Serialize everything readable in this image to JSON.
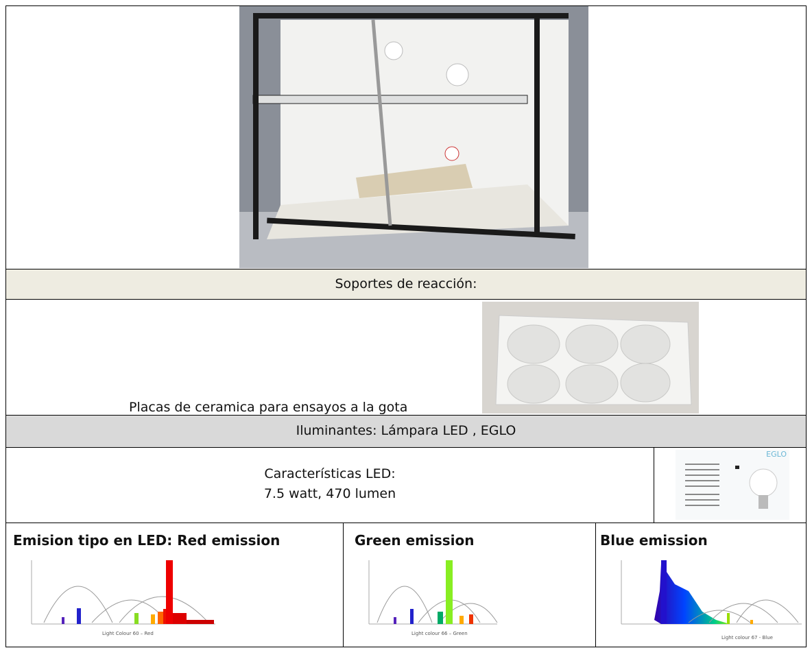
{
  "table": {
    "rows": [
      {
        "heading": "Soportes de reacción:"
      },
      {
        "text": "Placas de ceramica para ensayos a la gota"
      },
      {
        "heading": "Iluminantes: Lámpara LED , EGLO"
      },
      {
        "lines": [
          "Características LED:",
          "7.5 watt, 470 lumen"
        ],
        "brand": "EGLO"
      },
      {
        "cells": [
          {
            "title": "Emision tipo en LED: Red emission",
            "caption": "Light Colour 60 – Red"
          },
          {
            "title": "Green emission",
            "caption": "Light colour 66 – Green"
          },
          {
            "title": "Blue emission",
            "caption": "Light colour 67 - Blue"
          }
        ]
      }
    ]
  }
}
